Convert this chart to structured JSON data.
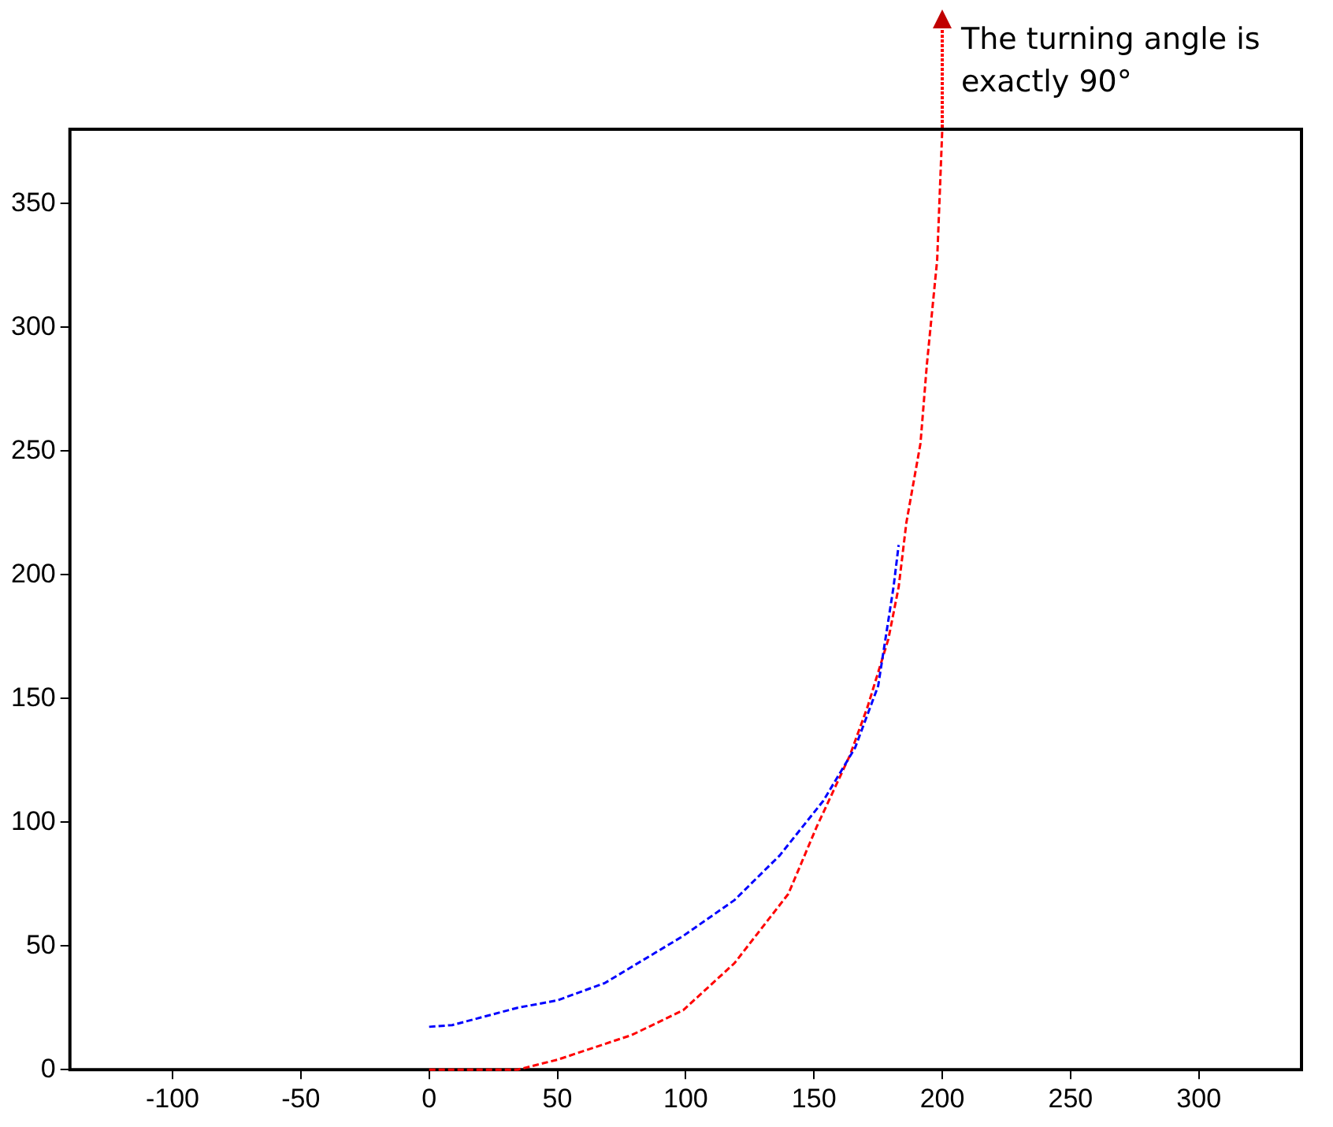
{
  "chart_data": {
    "type": "line",
    "xlim": [
      -140,
      340
    ],
    "xticks": [
      -100,
      -50,
      0,
      50,
      100,
      150,
      200,
      250,
      300
    ],
    "ylim": [
      0,
      380
    ],
    "yticks": [
      0,
      50,
      100,
      150,
      200,
      250,
      300,
      350
    ],
    "grid": false,
    "legend": false,
    "marker": "none",
    "line_style": "dashed",
    "series": [
      {
        "color": "#0000ff",
        "x": [
          0,
          9,
          34.5,
          50,
          68.5,
          99,
          119,
          136.6,
          153.6,
          166,
          175,
          181,
          183
        ],
        "values": [
          17.3,
          18,
          25,
          28,
          35,
          54,
          68.5,
          86.5,
          108.6,
          130,
          155,
          195,
          212
        ]
      },
      {
        "color": "#ff0000",
        "x": [
          0,
          34.5,
          50,
          79,
          99,
          119,
          140,
          151,
          164,
          171,
          179,
          183,
          186,
          191.5,
          194,
          198,
          200
        ],
        "values": [
          0,
          0,
          4,
          14,
          24,
          43,
          71,
          98,
          127,
          147,
          174,
          195,
          221,
          253,
          285,
          327,
          380
        ]
      }
    ],
    "annotations": [
      "The turning angle is exactly 90°"
    ]
  }
}
